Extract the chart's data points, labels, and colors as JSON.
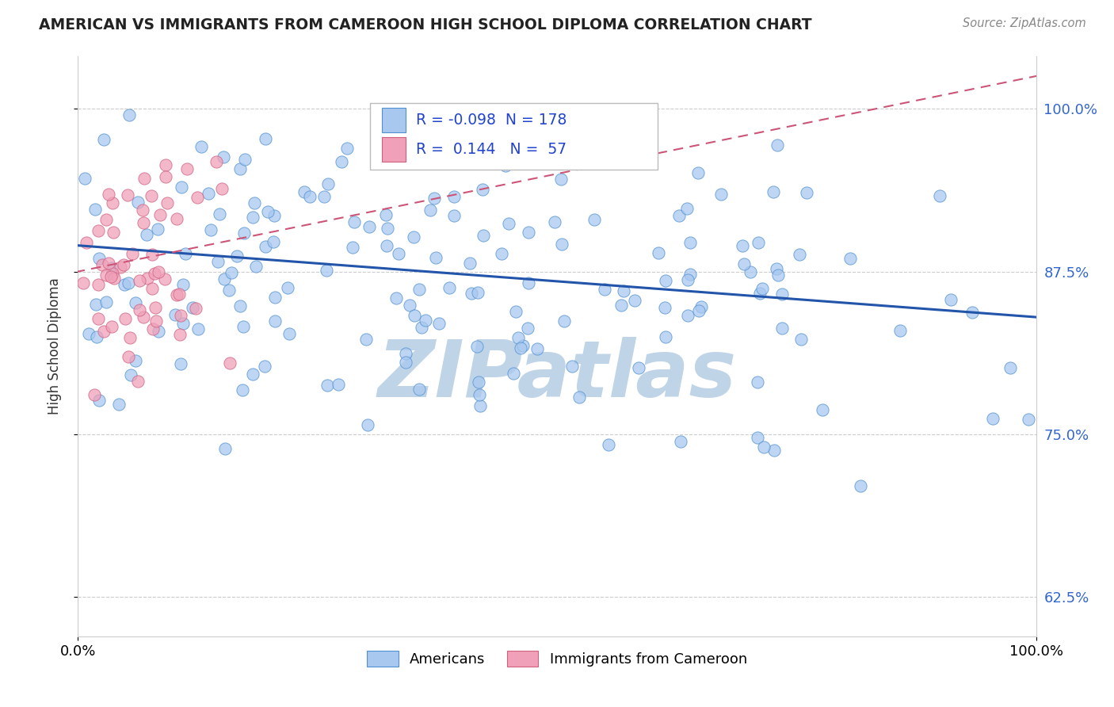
{
  "title": "AMERICAN VS IMMIGRANTS FROM CAMEROON HIGH SCHOOL DIPLOMA CORRELATION CHART",
  "source": "Source: ZipAtlas.com",
  "ylabel": "High School Diploma",
  "xlim": [
    0.0,
    1.0
  ],
  "ylim": [
    0.595,
    1.04
  ],
  "yticks": [
    0.625,
    0.75,
    0.875,
    1.0
  ],
  "ytick_labels": [
    "62.5%",
    "75.0%",
    "87.5%",
    "100.0%"
  ],
  "xtick_labels": [
    "0.0%",
    "100.0%"
  ],
  "legend_r1": "-0.098",
  "legend_n1": "178",
  "legend_r2": "0.144",
  "legend_n2": "57",
  "blue_fill": "#a8c8f0",
  "blue_edge": "#5090d0",
  "pink_fill": "#f0a0b8",
  "pink_edge": "#d06080",
  "blue_line_color": "#2255aa",
  "pink_line_color": "#cc5577",
  "r_value_color": "#2244cc",
  "watermark_color": "#c0d4e8",
  "title_color": "#222222",
  "source_color": "#888888",
  "ylabel_color": "#333333",
  "tick_label_color": "#3366cc",
  "grid_color": "#cccccc"
}
